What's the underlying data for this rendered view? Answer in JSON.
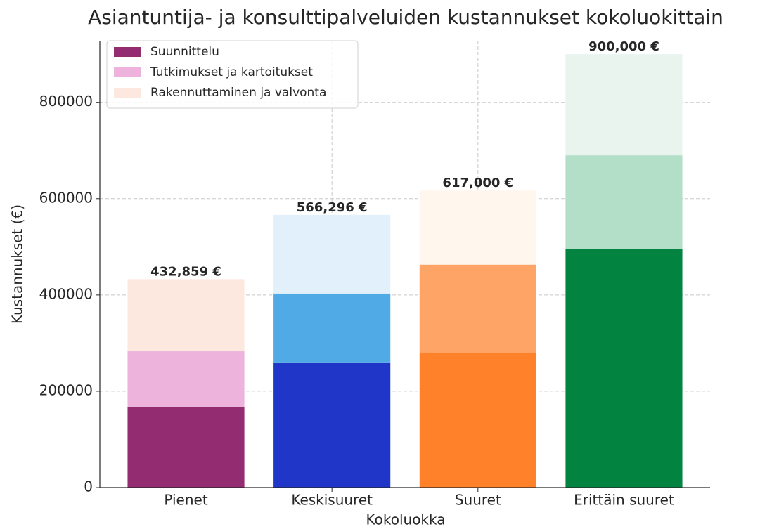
{
  "chart_data": {
    "type": "stacked_bar",
    "title": "Asiantuntija- ja konsulttipalveluiden kustannukset kokoluokittain",
    "xlabel": "Kokoluokka",
    "ylabel": "Kustannukset (€)",
    "categories": [
      "Pienet",
      "Keskisuuret",
      "Suuret",
      "Erittäin suuret"
    ],
    "series": [
      {
        "name": "Suunnittelu",
        "color": "#932c70",
        "colors": [
          "#932c70",
          "#1f36c8",
          "#ff822a",
          "#02833f"
        ],
        "values": [
          168000,
          260000,
          279000,
          495000
        ]
      },
      {
        "name": "Tutkimukset ja kartoitukset",
        "color": "#edb3dc",
        "colors": [
          "#edb3dc",
          "#4faae5",
          "#fea466",
          "#b3dec8"
        ],
        "values": [
          115000,
          143000,
          184000,
          195000
        ]
      },
      {
        "name": "Rakennuttaminen ja valvonta",
        "color": "#fde8e0",
        "colors": [
          "#fde8e0",
          "#e1f0fa",
          "#fff6ee",
          "#e8f4ed"
        ],
        "values": [
          149859,
          163296,
          154000,
          210000
        ]
      }
    ],
    "total_labels": [
      "432,859 €",
      "566,296 €",
      "617,000 €",
      "900,000 €"
    ],
    "ylim": [
      0,
      928000
    ],
    "yticks": [
      0,
      200000,
      400000,
      600000,
      800000
    ],
    "grid": true,
    "legend": "upper left"
  }
}
